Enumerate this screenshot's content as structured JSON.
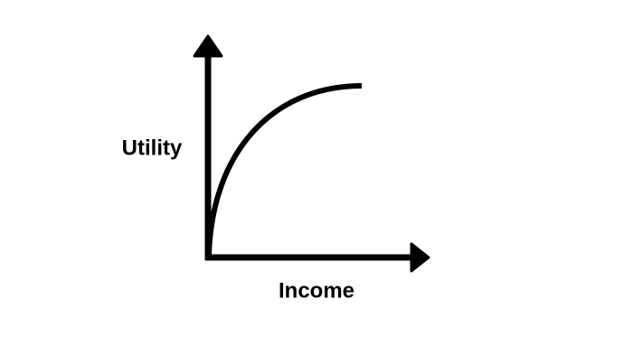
{
  "axes": {
    "y_label": "Utility",
    "x_label": "Income"
  }
}
